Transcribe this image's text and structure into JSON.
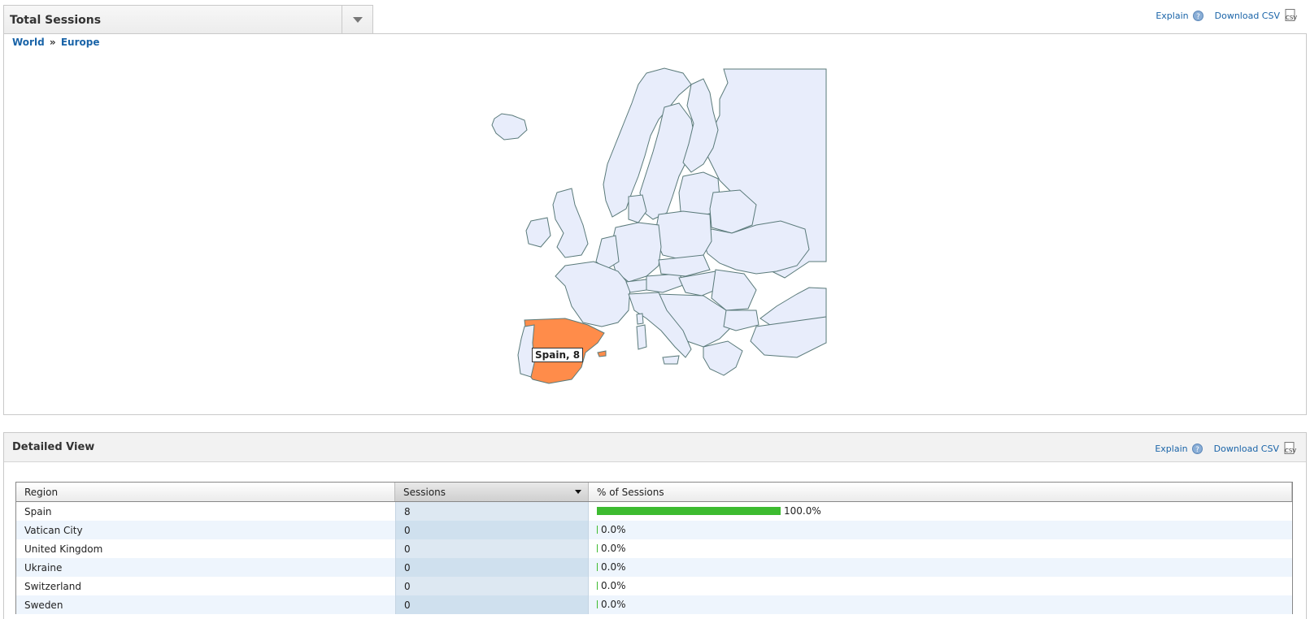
{
  "header": {
    "metric": "Total Sessions",
    "explain_label": "Explain",
    "download_label": "Download CSV"
  },
  "breadcrumb": {
    "world": "World",
    "separator": "»",
    "europe": "Europe"
  },
  "map": {
    "highlight_color": "#ff8c4a",
    "base_color": "#e8edfb",
    "border_color": "#5a7a7a",
    "tooltip": "Spain, 8"
  },
  "detail": {
    "title": "Detailed View",
    "explain_label": "Explain",
    "download_label": "Download CSV",
    "columns": [
      "Region",
      "Sessions",
      "% of Sessions"
    ],
    "rows": [
      {
        "region": "Spain",
        "sessions": "8",
        "pct": "100.0%",
        "fraction": 1.0
      },
      {
        "region": "Vatican City",
        "sessions": "0",
        "pct": "0.0%",
        "fraction": 0
      },
      {
        "region": "United Kingdom",
        "sessions": "0",
        "pct": "0.0%",
        "fraction": 0
      },
      {
        "region": "Ukraine",
        "sessions": "0",
        "pct": "0.0%",
        "fraction": 0
      },
      {
        "region": "Switzerland",
        "sessions": "0",
        "pct": "0.0%",
        "fraction": 0
      },
      {
        "region": "Sweden",
        "sessions": "0",
        "pct": "0.0%",
        "fraction": 0
      }
    ]
  }
}
